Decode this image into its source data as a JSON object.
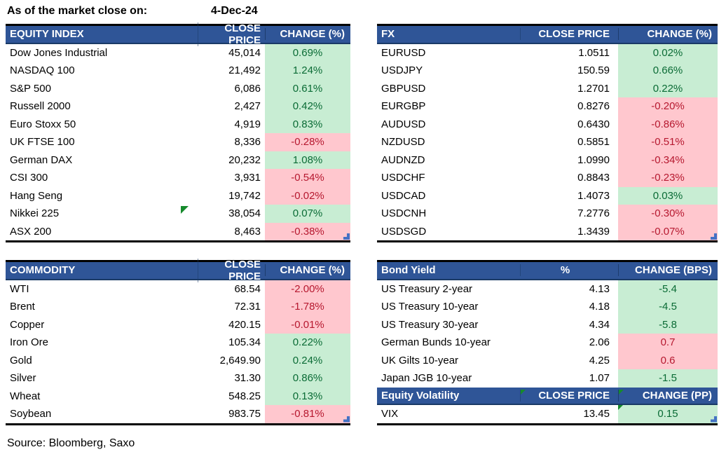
{
  "meta": {
    "as_of_label": "As of the market close on:",
    "date": "4-Dec-24",
    "source": "Source: Bloomberg, Saxo"
  },
  "colors": {
    "header_bg": "#2F5597",
    "header_text": "#FFFFFF",
    "positive_bg": "#C8EDD3",
    "positive_text": "#0A6B35",
    "negative_bg": "#FFC7CE",
    "negative_text": "#B6182F",
    "border_black": "#000000",
    "marker_blue": "#4472C4",
    "indicator_green": "#168A2C"
  },
  "icons": {
    "error_indicator": "small green corner triangle",
    "range_corner": "small blue step corner marker",
    "change_flag": "green triangle marker near Nikkei row"
  },
  "tables": {
    "equity": {
      "title": "EQUITY INDEX",
      "col2": "CLOSE PRICE",
      "col3": "CHANGE (%)",
      "rows": [
        {
          "name": "Dow Jones Industrial",
          "price": "45,014",
          "change": "0.69%",
          "color": "green"
        },
        {
          "name": "NASDAQ 100",
          "price": "21,492",
          "change": "1.24%",
          "color": "green"
        },
        {
          "name": "S&P 500",
          "price": "6,086",
          "change": "0.61%",
          "color": "green"
        },
        {
          "name": "Russell 2000",
          "price": "2,427",
          "change": "0.42%",
          "color": "green"
        },
        {
          "name": "Euro Stoxx 50",
          "price": "4,919",
          "change": "0.83%",
          "color": "green"
        },
        {
          "name": "UK FTSE 100",
          "price": "8,336",
          "change": "-0.28%",
          "color": "red"
        },
        {
          "name": "German DAX",
          "price": "20,232",
          "change": "1.08%",
          "color": "green"
        },
        {
          "name": "CSI 300",
          "price": "3,931",
          "change": "-0.54%",
          "color": "red"
        },
        {
          "name": "Hang Seng",
          "price": "19,742",
          "change": "-0.02%",
          "color": "red"
        },
        {
          "name": "Nikkei 225",
          "price": "38,054",
          "change": "0.07%",
          "color": "green"
        },
        {
          "name": "ASX 200",
          "price": "8,463",
          "change": "-0.38%",
          "color": "red"
        }
      ]
    },
    "fx": {
      "title": "FX",
      "col2": "CLOSE PRICE",
      "col3": "CHANGE (%)",
      "rows": [
        {
          "name": "EURUSD",
          "price": "1.0511",
          "change": "0.02%",
          "color": "green"
        },
        {
          "name": "USDJPY",
          "price": "150.59",
          "change": "0.66%",
          "color": "green"
        },
        {
          "name": "GBPUSD",
          "price": "1.2701",
          "change": "0.22%",
          "color": "green"
        },
        {
          "name": "EURGBP",
          "price": "0.8276",
          "change": "-0.20%",
          "color": "red"
        },
        {
          "name": "AUDUSD",
          "price": "0.6430",
          "change": "-0.86%",
          "color": "red"
        },
        {
          "name": "NZDUSD",
          "price": "0.5851",
          "change": "-0.51%",
          "color": "red"
        },
        {
          "name": "AUDNZD",
          "price": "1.0990",
          "change": "-0.34%",
          "color": "red"
        },
        {
          "name": "USDCHF",
          "price": "0.8843",
          "change": "-0.23%",
          "color": "red"
        },
        {
          "name": "USDCAD",
          "price": "1.4073",
          "change": "0.03%",
          "color": "green"
        },
        {
          "name": "USDCNH",
          "price": "7.2776",
          "change": "-0.30%",
          "color": "red"
        },
        {
          "name": "USDSGD",
          "price": "1.3439",
          "change": "-0.07%",
          "color": "red"
        }
      ]
    },
    "commodity": {
      "title": "COMMODITY",
      "col2": "CLOSE PRICE",
      "col3": "CHANGE (%)",
      "rows": [
        {
          "name": "WTI",
          "price": "68.54",
          "change": "-2.00%",
          "color": "red"
        },
        {
          "name": "Brent",
          "price": "72.31",
          "change": "-1.78%",
          "color": "red"
        },
        {
          "name": "Copper",
          "price": "420.15",
          "change": "-0.01%",
          "color": "red"
        },
        {
          "name": "Iron Ore",
          "price": "105.34",
          "change": "0.22%",
          "color": "green"
        },
        {
          "name": "Gold",
          "price": "2,649.90",
          "change": "0.24%",
          "color": "green"
        },
        {
          "name": "Silver",
          "price": "31.30",
          "change": "0.86%",
          "color": "green"
        },
        {
          "name": "Wheat",
          "price": "548.25",
          "change": "0.13%",
          "color": "green"
        },
        {
          "name": "Soybean",
          "price": "983.75",
          "change": "-0.81%",
          "color": "red"
        }
      ]
    },
    "bond": {
      "title": "Bond Yield",
      "col2": "%",
      "col3": "CHANGE (BPS)",
      "rows": [
        {
          "name": "US Treasury 2-year",
          "price": "4.13",
          "change": "-5.4",
          "color": "green"
        },
        {
          "name": "US Treasury 10-year",
          "price": "4.18",
          "change": "-4.5",
          "color": "green"
        },
        {
          "name": "US Treasury 30-year",
          "price": "4.34",
          "change": "-5.8",
          "color": "green"
        },
        {
          "name": "German Bunds 10-year",
          "price": "2.06",
          "change": "0.7",
          "color": "red"
        },
        {
          "name": "UK Gilts 10-year",
          "price": "4.25",
          "change": "0.6",
          "color": "red"
        },
        {
          "name": "Japan JGB 10-year",
          "price": "1.07",
          "change": "-1.5",
          "color": "green"
        }
      ]
    },
    "volatility": {
      "title": "Equity Volatility",
      "col2": "CLOSE PRICE",
      "col3": "CHANGE (PP)",
      "rows": [
        {
          "name": "VIX",
          "price": "13.45",
          "change": "0.15",
          "color": "green"
        }
      ]
    }
  }
}
